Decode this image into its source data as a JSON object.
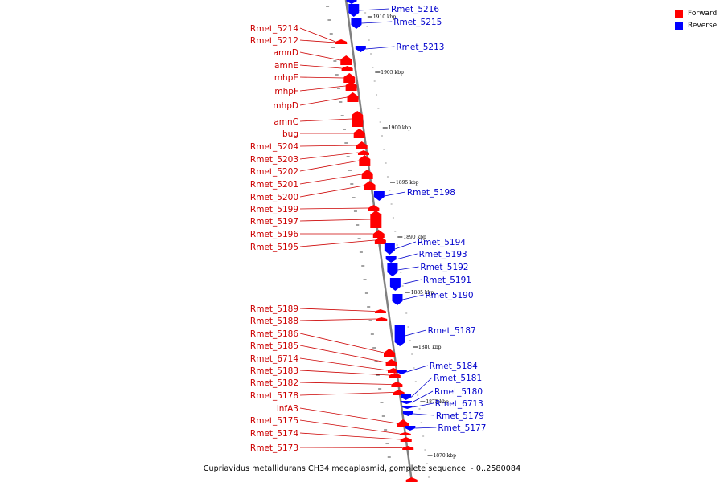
{
  "caption": "Cupriavidus metallidurans CH34 megaplasmid, complete sequence. - 0..2580084",
  "legend": [
    {
      "label": "Forward",
      "color": "#ff0000"
    },
    {
      "label": "Reverse",
      "color": "#0000ff"
    }
  ],
  "colors": {
    "forward": "#ff0000",
    "forward_label": "#cc0000",
    "reverse": "#0000ff",
    "reverse_label": "#0000cc",
    "backbone": "#808080"
  },
  "ticks": [
    "1910 kbp",
    "1905 kbp",
    "1900 kbp",
    "1895 kbp",
    "1890 kbp",
    "1885 kbp",
    "1880 kbp",
    "1875 kbp",
    "1870 kbp"
  ],
  "forward_genes": [
    "Rmet_5214",
    "Rmet_5212",
    "amnD",
    "amnE",
    "mhpE",
    "mhpF",
    "mhpD",
    "amnC",
    "bug",
    "Rmet_5204",
    "Rmet_5203",
    "Rmet_5202",
    "Rmet_5201",
    "Rmet_5200",
    "Rmet_5199",
    "Rmet_5197",
    "Rmet_5196",
    "Rmet_5195",
    "Rmet_5189",
    "Rmet_5188",
    "Rmet_5186",
    "Rmet_5185",
    "Rmet_6714",
    "Rmet_5183",
    "Rmet_5182",
    "Rmet_5178",
    "infA3",
    "Rmet_5175",
    "Rmet_5174",
    "Rmet_5173"
  ],
  "reverse_genes": [
    "Rmet_5216",
    "Rmet_5215",
    "Rmet_5213",
    "Rmet_5198",
    "Rmet_5194",
    "Rmet_5193",
    "Rmet_5192",
    "Rmet_5191",
    "Rmet_5190",
    "Rmet_5187",
    "Rmet_5184",
    "Rmet_5181",
    "Rmet_5180",
    "Rmet_6713",
    "Rmet_5179",
    "Rmet_5177"
  ]
}
